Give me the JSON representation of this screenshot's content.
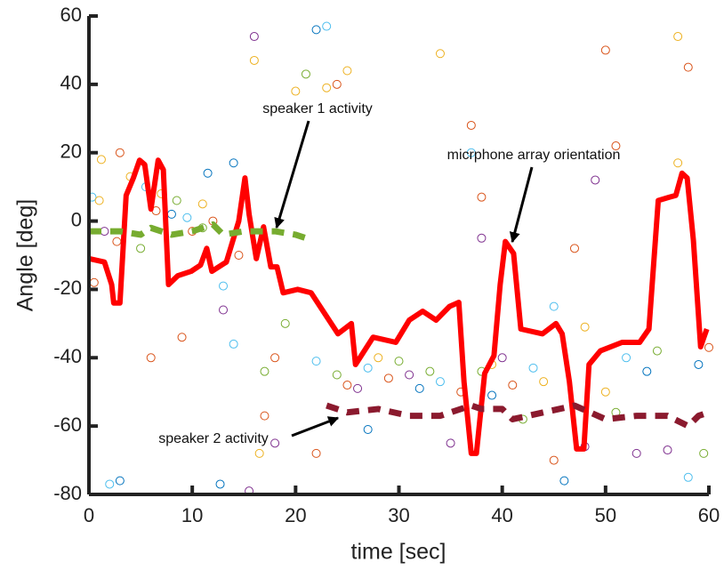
{
  "chart_data": {
    "type": "line",
    "xlabel": "time [sec]",
    "ylabel": "Angle [deg]",
    "xlim": [
      0,
      60
    ],
    "ylim": [
      -80,
      60
    ],
    "xticks": [
      0,
      10,
      20,
      30,
      40,
      50,
      60
    ],
    "yticks": [
      -80,
      -60,
      -40,
      -20,
      0,
      20,
      40,
      60
    ],
    "annotations": [
      "speaker 1 activity",
      "micrphone array orientation",
      "speaker 2 activity"
    ],
    "series": [
      {
        "name": "micrphone array orientation",
        "color": "#ff0000",
        "dash": false,
        "x": [
          0,
          1.5,
          2.2,
          2.4,
          3,
          3.6,
          4.3,
          4.9,
          5.4,
          6,
          6.7,
          7.2,
          7.7,
          8.6,
          9.9,
          10.8,
          11.4,
          11.9,
          13.3,
          14.5,
          15.1,
          15.5,
          16.2,
          16.9,
          17.6,
          18.2,
          18.8,
          20.2,
          21.5,
          24.1,
          25.4,
          25.8,
          27.5,
          29.7,
          31,
          32.3,
          33.6,
          34.9,
          35.8,
          36.3,
          37,
          37.5,
          38.3,
          39.2,
          39.8,
          40.3,
          41.1,
          41.8,
          43.9,
          45.2,
          45.8,
          46.5,
          47.2,
          47.9,
          48.4,
          49.5,
          51.6,
          53.3,
          54.2,
          55.1,
          56.1,
          56.8,
          57.4,
          57.9,
          58.5,
          59.2,
          59.8
        ],
        "values": [
          -11,
          -12,
          -18.6,
          -24,
          -24,
          7.5,
          12.6,
          17.8,
          16.5,
          3.5,
          17.8,
          15,
          -18.6,
          -16,
          -14.7,
          -12.9,
          -8,
          -14.7,
          -12,
          0,
          12.6,
          2,
          -11,
          -1.7,
          -13.4,
          -13.4,
          -21,
          -20,
          -21,
          -33,
          -30,
          -42,
          -34,
          -35.5,
          -29,
          -26.4,
          -29,
          -25,
          -23.8,
          -47,
          -68,
          -68,
          -44.6,
          -39.4,
          -18.6,
          -6,
          -9.5,
          -31.6,
          -33,
          -30,
          -33,
          -47,
          -66.7,
          -66.7,
          -42,
          -38,
          -35.5,
          -35.5,
          -31.6,
          6,
          6.9,
          7.5,
          14,
          12.6,
          -5.6,
          -36.8,
          -31.6
        ]
      },
      {
        "name": "speaker 1 activity",
        "color": "#77ac30",
        "dash": true,
        "x": [
          0,
          3,
          5,
          6,
          8,
          10,
          12,
          13,
          15,
          17,
          18,
          20,
          21
        ],
        "values": [
          -3,
          -3,
          -4,
          -2,
          -4,
          -3,
          -1,
          -4,
          -3,
          -3,
          -3,
          -4,
          -5
        ]
      },
      {
        "name": "speaker 2 activity",
        "color": "#8b1a2e",
        "dash": true,
        "x": [
          23,
          25,
          28,
          31,
          34,
          37,
          38,
          40,
          41,
          44,
          47,
          50,
          53,
          56,
          58,
          59,
          60
        ],
        "values": [
          -54,
          -56,
          -55,
          -57,
          -57,
          -54,
          -55,
          -55,
          -58,
          -56,
          -54,
          -58,
          -57,
          -57,
          -60,
          -57,
          -56
        ]
      }
    ],
    "scatter": {
      "palette": [
        "#0072bd",
        "#d95319",
        "#edb120",
        "#7e2f8e",
        "#77ac30",
        "#4dbeee"
      ],
      "x": [
        0.3,
        1,
        0.5,
        1.2,
        2,
        1.5,
        2.7,
        3,
        3,
        4,
        5.5,
        5,
        6.5,
        6,
        7,
        8,
        8.5,
        9,
        9.5,
        10,
        11,
        11.5,
        11,
        12,
        12.7,
        13,
        13,
        14,
        14.5,
        14,
        15.5,
        16,
        16,
        17,
        17,
        16.5,
        18,
        18,
        19,
        20,
        21,
        22,
        22,
        22,
        23,
        23,
        24,
        24,
        25,
        25,
        26,
        27,
        27,
        28,
        29,
        30,
        31,
        32,
        33,
        34,
        34,
        35,
        36,
        37,
        37,
        38,
        38,
        38,
        39,
        39,
        40,
        41,
        42,
        43,
        44,
        45,
        45,
        46,
        47,
        48,
        48,
        49,
        50,
        50,
        51,
        51,
        52,
        53,
        54,
        55,
        56,
        57,
        57,
        58,
        58,
        59,
        59.5,
        60
      ],
      "values": [
        7,
        6,
        -18,
        18,
        -77,
        -3,
        -6,
        20,
        -76,
        13,
        10,
        -8,
        3,
        -40,
        8,
        2,
        6,
        -34,
        1,
        -3,
        5,
        14,
        -2,
        0,
        -77,
        -26,
        -19,
        -36,
        -10,
        17,
        -79,
        54,
        47,
        -57,
        -44,
        -68,
        -40,
        -65,
        -30,
        38,
        43,
        56,
        -41,
        -68,
        57,
        39,
        40,
        -45,
        44,
        -48,
        -49,
        -61,
        -43,
        -40,
        -46,
        -41,
        -45,
        -49,
        -44,
        -47,
        49,
        -65,
        -50,
        28,
        20,
        7,
        -5,
        -44,
        -42,
        -51,
        -40,
        -48,
        -58,
        -43,
        -47,
        -70,
        -25,
        -76,
        -8,
        -66,
        -31,
        12,
        50,
        -50,
        -56,
        22,
        -40,
        -68,
        -44,
        -38,
        -67,
        54,
        17,
        45,
        -75,
        -42,
        -68,
        -37
      ],
      "colors": [
        5,
        2,
        1,
        2,
        5,
        3,
        1,
        1,
        0,
        2,
        5,
        4,
        1,
        1,
        2,
        0,
        4,
        1,
        5,
        1,
        2,
        0,
        4,
        1,
        0,
        3,
        5,
        5,
        1,
        0,
        3,
        3,
        2,
        1,
        4,
        2,
        1,
        3,
        4,
        2,
        4,
        0,
        5,
        1,
        5,
        2,
        1,
        4,
        2,
        1,
        3,
        0,
        5,
        2,
        1,
        4,
        3,
        0,
        4,
        5,
        2,
        3,
        1,
        1,
        5,
        1,
        3,
        4,
        2,
        0,
        3,
        1,
        4,
        5,
        2,
        1,
        5,
        0,
        1,
        3,
        2,
        3,
        1,
        2,
        4,
        1,
        5,
        3,
        0,
        4,
        3,
        2,
        2,
        1,
        5,
        0,
        4,
        1
      ]
    }
  }
}
